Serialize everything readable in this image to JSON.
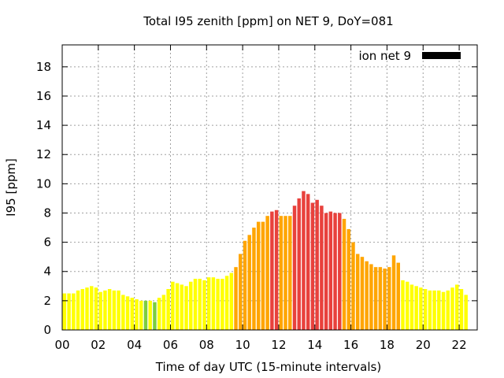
{
  "chart_data": {
    "type": "bar",
    "title": "Total I95 zenith [ppm] on NET 9, DoY=081",
    "xlabel": "Time of day UTC (15-minute intervals)",
    "ylabel": "I95 [ppm]",
    "legend": {
      "label": "ion net 9",
      "position": "top-right",
      "swatch_color": "#000000"
    },
    "xlim": [
      0,
      23
    ],
    "ylim": [
      0,
      19.5
    ],
    "x_ticks": [
      {
        "v": 0,
        "label": "00"
      },
      {
        "v": 2,
        "label": "02"
      },
      {
        "v": 4,
        "label": "04"
      },
      {
        "v": 6,
        "label": "06"
      },
      {
        "v": 8,
        "label": "08"
      },
      {
        "v": 10,
        "label": "10"
      },
      {
        "v": 12,
        "label": "12"
      },
      {
        "v": 14,
        "label": "14"
      },
      {
        "v": 16,
        "label": "16"
      },
      {
        "v": 18,
        "label": "18"
      },
      {
        "v": 20,
        "label": "20"
      },
      {
        "v": 22,
        "label": "22"
      }
    ],
    "y_ticks": [
      {
        "v": 0,
        "label": "0"
      },
      {
        "v": 2,
        "label": "2"
      },
      {
        "v": 4,
        "label": "4"
      },
      {
        "v": 6,
        "label": "6"
      },
      {
        "v": 8,
        "label": "8"
      },
      {
        "v": 10,
        "label": "10"
      },
      {
        "v": 12,
        "label": "12"
      },
      {
        "v": 14,
        "label": "14"
      },
      {
        "v": 16,
        "label": "16"
      },
      {
        "v": 18,
        "label": "18"
      }
    ],
    "grid": true,
    "bar_interval_hours": 0.25,
    "colors": {
      "low": "#ffff00",
      "lowest": "#7ccd40",
      "mid": "#ffa500",
      "high": "#e8413c"
    },
    "values": [
      2.5,
      2.5,
      2.5,
      2.7,
      2.8,
      2.9,
      3.0,
      2.9,
      2.6,
      2.7,
      2.8,
      2.7,
      2.7,
      2.4,
      2.3,
      2.2,
      2.1,
      2.0,
      2.0,
      2.0,
      1.9,
      2.2,
      2.4,
      2.8,
      3.3,
      3.2,
      3.1,
      3.0,
      3.3,
      3.5,
      3.5,
      3.4,
      3.6,
      3.6,
      3.5,
      3.5,
      3.7,
      3.9,
      4.3,
      5.2,
      6.1,
      6.5,
      7.0,
      7.4,
      7.4,
      7.8,
      8.1,
      8.2,
      7.8,
      7.8,
      7.8,
      8.5,
      9.0,
      9.5,
      9.3,
      8.7,
      8.9,
      8.5,
      8.0,
      8.1,
      8.0,
      8.0,
      7.6,
      6.9,
      6.0,
      5.2,
      5.0,
      4.7,
      4.5,
      4.3,
      4.3,
      4.2,
      4.3,
      5.1,
      4.6,
      3.4,
      3.3,
      3.1,
      3.0,
      2.9,
      2.8,
      2.7,
      2.7,
      2.7,
      2.6,
      2.7,
      2.9,
      3.1,
      2.8,
      2.4
    ],
    "value_colors": [
      "low",
      "low",
      "low",
      "low",
      "low",
      "low",
      "low",
      "low",
      "low",
      "low",
      "low",
      "low",
      "low",
      "low",
      "low",
      "low",
      "low",
      "low",
      "lowest",
      "low",
      "lowest",
      "low",
      "low",
      "low",
      "low",
      "low",
      "low",
      "low",
      "low",
      "low",
      "low",
      "low",
      "low",
      "low",
      "low",
      "low",
      "low",
      "low",
      "mid",
      "mid",
      "mid",
      "mid",
      "mid",
      "mid",
      "mid",
      "mid",
      "high",
      "high",
      "mid",
      "mid",
      "mid",
      "high",
      "high",
      "high",
      "high",
      "high",
      "high",
      "high",
      "high",
      "high",
      "high",
      "high",
      "mid",
      "mid",
      "mid",
      "mid",
      "mid",
      "mid",
      "mid",
      "mid",
      "mid",
      "mid",
      "mid",
      "mid",
      "mid",
      "low",
      "low",
      "low",
      "low",
      "low",
      "low",
      "low",
      "low",
      "low",
      "low",
      "low",
      "low",
      "low",
      "low",
      "low"
    ]
  }
}
